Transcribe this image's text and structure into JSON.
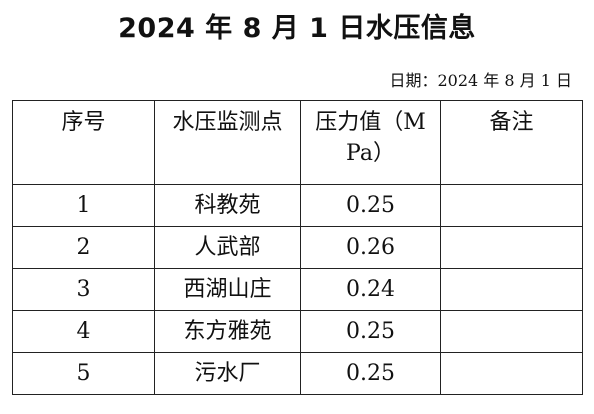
{
  "title": "2024 年 8 月 1 日水压信息",
  "date": "日期：2024 年 8 月 1 日",
  "table": {
    "headers": {
      "seq": "序号",
      "station": "水压监测点",
      "pressure": "压力值（MPa）",
      "note": "备注"
    },
    "rows": [
      {
        "seq": "1",
        "station": "科教苑",
        "pressure": "0.25",
        "note": ""
      },
      {
        "seq": "2",
        "station": "人武部",
        "pressure": "0.26",
        "note": ""
      },
      {
        "seq": "3",
        "station": "西湖山庄",
        "pressure": "0.24",
        "note": ""
      },
      {
        "seq": "4",
        "station": "东方雅苑",
        "pressure": "0.25",
        "note": ""
      },
      {
        "seq": "5",
        "station": "污水厂",
        "pressure": "0.25",
        "note": ""
      }
    ]
  }
}
